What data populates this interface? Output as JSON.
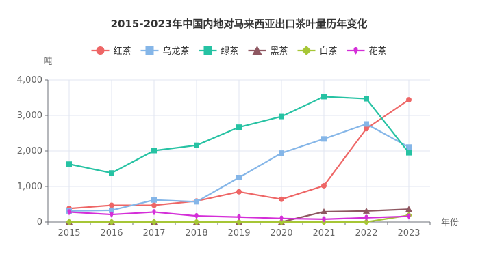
{
  "chart_data": {
    "type": "line",
    "title": "2015-2023年中国内地对马来西亚出口茶叶量历年变化",
    "ylabel": "吨",
    "xlabel": "年份",
    "ylim": [
      0,
      4000
    ],
    "yticks": [
      "0",
      "1,000",
      "2,000",
      "3,000",
      "4,000"
    ],
    "categories": [
      "2015",
      "2016",
      "2017",
      "2018",
      "2019",
      "2020",
      "2021",
      "2022",
      "2023"
    ],
    "grid": true,
    "legend_position": "top",
    "series": [
      {
        "name": "红茶",
        "color": "#ee6666",
        "marker": "circle",
        "values": [
          380,
          470,
          470,
          590,
          850,
          640,
          1020,
          2630,
          3440
        ]
      },
      {
        "name": "乌龙茶",
        "color": "#85b6e8",
        "marker": "square",
        "values": [
          310,
          330,
          620,
          570,
          1250,
          1940,
          2340,
          2760,
          2110
        ]
      },
      {
        "name": "绿茶",
        "color": "#26c2a3",
        "marker": "square",
        "values": [
          1630,
          1380,
          2010,
          2160,
          2670,
          2970,
          3530,
          3470,
          1950
        ]
      },
      {
        "name": "黑茶",
        "color": "#8e5761",
        "marker": "triangle",
        "values": [
          0,
          0,
          0,
          0,
          0,
          0,
          290,
          310,
          360
        ]
      },
      {
        "name": "白茶",
        "color": "#a6c636",
        "marker": "diamond",
        "values": [
          0,
          0,
          0,
          0,
          0,
          0,
          0,
          0,
          190
        ]
      },
      {
        "name": "花茶",
        "color": "#d42ed8",
        "marker": "pin",
        "values": [
          280,
          210,
          280,
          170,
          140,
          100,
          80,
          120,
          160
        ]
      }
    ]
  }
}
